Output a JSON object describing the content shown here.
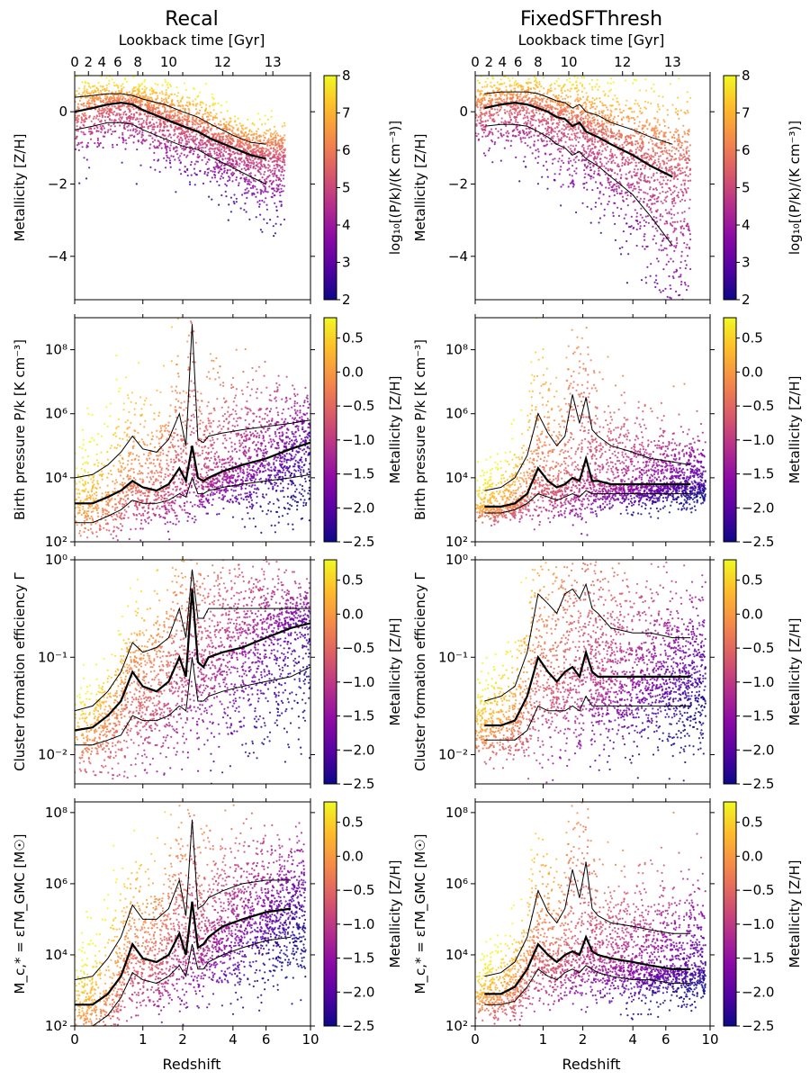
{
  "figure": {
    "columns": [
      {
        "title": "Recal",
        "lookback_label": "Lookback time [Gyr]"
      },
      {
        "title": "FixedSFThresh",
        "lookback_label": "Lookback time [Gyr]"
      }
    ],
    "lookback_ticks": [
      {
        "label": "0",
        "z": 0.0
      },
      {
        "label": "2",
        "z": 0.15
      },
      {
        "label": "4",
        "z": 0.32
      },
      {
        "label": "6",
        "z": 0.55
      },
      {
        "label": "8",
        "z": 0.9
      },
      {
        "label": "10",
        "z": 1.6
      },
      {
        "label": "12",
        "z": 3.5
      },
      {
        "label": "13",
        "z": 6.5
      }
    ],
    "x_label": "Redshift",
    "x_ticks": [
      "0",
      "1",
      "2",
      "4",
      "6",
      "10"
    ],
    "colors": {
      "cmap": [
        "#0d0887",
        "#5302a3",
        "#8b0aa5",
        "#b83289",
        "#db5c68",
        "#f48849",
        "#febc2a",
        "#f0f921"
      ],
      "median_line": "#000000",
      "percentile_line": "#000000"
    }
  },
  "chart_data": [
    {
      "type": "scatter",
      "panel": "recal-metallicity",
      "ylabel": "Metallicity [Z/H]",
      "yscale": "linear",
      "ylim": [
        -5.2,
        1.0
      ],
      "y_ticks": [
        "0",
        "−2",
        "−4"
      ],
      "colorbar_label": "log10[(P/k)/(K cm^-3)]",
      "colorbar_range": [
        2,
        8
      ],
      "colorbar_ticks": [
        "2",
        "3",
        "4",
        "5",
        "6",
        "7",
        "8"
      ],
      "x": [
        0.0,
        0.2,
        0.4,
        0.6,
        0.8,
        1.0,
        1.5,
        2.0,
        2.5,
        3.0,
        4.0,
        5.0,
        6.0
      ],
      "median": [
        0.0,
        0.1,
        0.2,
        0.25,
        0.2,
        0.05,
        -0.2,
        -0.4,
        -0.55,
        -0.75,
        -1.0,
        -1.2,
        -1.3
      ],
      "p16": [
        -0.5,
        -0.4,
        -0.3,
        -0.3,
        -0.35,
        -0.5,
        -0.75,
        -0.95,
        -1.05,
        -1.25,
        -1.55,
        -1.8,
        -2.0
      ],
      "p84": [
        0.4,
        0.45,
        0.5,
        0.5,
        0.45,
        0.35,
        0.2,
        0.0,
        -0.15,
        -0.35,
        -0.65,
        -0.85,
        -0.9
      ]
    },
    {
      "type": "scatter",
      "panel": "fixed-metallicity",
      "ylabel": "Metallicity [Z/H]",
      "yscale": "linear",
      "ylim": [
        -5.2,
        1.0
      ],
      "y_ticks": [
        "0",
        "−2",
        "−4"
      ],
      "colorbar_label": "log10[(P/k)/(K cm^-3)]",
      "colorbar_range": [
        2,
        8
      ],
      "colorbar_ticks": [
        "2",
        "3",
        "4",
        "5",
        "6",
        "7",
        "8"
      ],
      "x": [
        0.1,
        0.3,
        0.5,
        0.7,
        0.9,
        1.1,
        1.3,
        1.5,
        1.7,
        1.9,
        2.1,
        2.5,
        3.0,
        4.0,
        5.0,
        6.5
      ],
      "median": [
        0.1,
        0.2,
        0.25,
        0.2,
        0.1,
        0.0,
        -0.15,
        -0.2,
        -0.4,
        -0.3,
        -0.55,
        -0.7,
        -0.9,
        -1.2,
        -1.5,
        -1.8
      ],
      "p16": [
        -0.4,
        -0.35,
        -0.35,
        -0.4,
        -0.55,
        -0.7,
        -0.9,
        -1.0,
        -1.2,
        -1.1,
        -1.3,
        -1.5,
        -1.8,
        -2.3,
        -2.9,
        -3.7
      ],
      "p84": [
        0.5,
        0.55,
        0.55,
        0.55,
        0.5,
        0.4,
        0.3,
        0.25,
        0.1,
        0.2,
        0.0,
        -0.1,
        -0.3,
        -0.5,
        -0.7,
        -0.9
      ]
    },
    {
      "type": "scatter",
      "panel": "recal-pressure",
      "ylabel": "Birth pressure P/k [K cm^-3]",
      "yscale": "log",
      "ylim": [
        2,
        9
      ],
      "y_ticks": [
        "10^2",
        "10^4",
        "10^6",
        "10^8"
      ],
      "colorbar_label": "Metallicity [Z/H]",
      "colorbar_range": [
        -2.5,
        0.8
      ],
      "colorbar_ticks": [
        "0.5",
        "0.0",
        "−0.5",
        "−1.0",
        "−1.5",
        "−2.0",
        "−2.5"
      ],
      "x": [
        0.0,
        0.2,
        0.4,
        0.6,
        0.8,
        1.0,
        1.3,
        1.6,
        1.9,
        2.1,
        2.3,
        2.5,
        2.7,
        2.9,
        3.5,
        4.5,
        6.0,
        8.0,
        10.0
      ],
      "median": [
        3.2,
        3.2,
        3.4,
        3.6,
        3.9,
        3.7,
        3.6,
        3.8,
        4.3,
        3.9,
        5.0,
        4.0,
        3.9,
        4.0,
        4.2,
        4.4,
        4.6,
        4.9,
        5.1
      ],
      "p16": [
        2.6,
        2.6,
        2.8,
        3.0,
        3.3,
        3.2,
        3.2,
        3.3,
        3.5,
        3.4,
        4.0,
        3.5,
        3.5,
        3.6,
        3.7,
        3.8,
        3.9,
        4.0,
        4.1
      ],
      "p84": [
        4.0,
        4.1,
        4.4,
        4.8,
        5.3,
        4.9,
        4.8,
        5.2,
        6.0,
        5.0,
        8.8,
        5.2,
        5.1,
        5.3,
        5.4,
        5.5,
        5.6,
        5.7,
        5.8
      ]
    },
    {
      "type": "scatter",
      "panel": "fixed-pressure",
      "ylabel": "Birth pressure P/k [K cm^-3]",
      "yscale": "log",
      "ylim": [
        2,
        9
      ],
      "y_ticks": [
        "10^2",
        "10^4",
        "10^6",
        "10^8"
      ],
      "colorbar_label": "Metallicity [Z/H]",
      "colorbar_range": [
        -2.5,
        0.8
      ],
      "colorbar_ticks": [
        "0.5",
        "0.0",
        "−0.5",
        "−1.0",
        "−1.5",
        "−2.0",
        "−2.5"
      ],
      "x": [
        0.1,
        0.3,
        0.5,
        0.7,
        0.9,
        1.1,
        1.3,
        1.5,
        1.7,
        1.9,
        2.1,
        2.3,
        2.5,
        3.0,
        4.0,
        5.0,
        6.5,
        8.0
      ],
      "median": [
        3.1,
        3.1,
        3.2,
        3.5,
        4.3,
        3.9,
        3.7,
        3.8,
        4.0,
        3.9,
        4.6,
        3.9,
        3.9,
        3.8,
        3.8,
        3.8,
        3.8,
        3.8
      ],
      "p16": [
        2.9,
        2.9,
        3.0,
        3.2,
        3.5,
        3.4,
        3.3,
        3.4,
        3.5,
        3.4,
        3.6,
        3.5,
        3.5,
        3.5,
        3.5,
        3.5,
        3.5,
        3.5
      ],
      "p84": [
        3.6,
        3.7,
        4.0,
        4.7,
        6.0,
        5.4,
        5.0,
        5.3,
        6.6,
        5.7,
        6.5,
        5.5,
        5.3,
        5.0,
        4.8,
        4.6,
        4.5,
        4.4
      ]
    },
    {
      "type": "scatter",
      "panel": "recal-cfe",
      "ylabel": "Cluster formation efficiency Γ",
      "yscale": "log",
      "ylim": [
        -2.3,
        0
      ],
      "y_ticks": [
        "10^0",
        "10^-1",
        "10^-2"
      ],
      "colorbar_label": "Metallicity [Z/H]",
      "colorbar_range": [
        -2.5,
        0.8
      ],
      "colorbar_ticks": [
        "0.5",
        "0.0",
        "−0.5",
        "−1.0",
        "−1.5",
        "−2.0",
        "−2.5"
      ],
      "x": [
        0.0,
        0.2,
        0.4,
        0.6,
        0.8,
        1.0,
        1.3,
        1.6,
        1.9,
        2.1,
        2.3,
        2.5,
        2.7,
        2.9,
        3.5,
        4.5,
        6.0,
        8.0,
        10.0
      ],
      "median": [
        -1.75,
        -1.72,
        -1.6,
        -1.45,
        -1.15,
        -1.3,
        -1.35,
        -1.25,
        -1.0,
        -1.2,
        -0.3,
        -1.05,
        -1.1,
        -1.0,
        -0.95,
        -0.9,
        -0.8,
        -0.7,
        -0.65
      ],
      "p16": [
        -1.9,
        -1.9,
        -1.85,
        -1.8,
        -1.6,
        -1.65,
        -1.65,
        -1.6,
        -1.5,
        -1.55,
        -1.0,
        -1.45,
        -1.45,
        -1.4,
        -1.35,
        -1.3,
        -1.25,
        -1.2,
        -1.1
      ],
      "p84": [
        -1.55,
        -1.5,
        -1.35,
        -1.15,
        -0.85,
        -0.95,
        -0.9,
        -0.8,
        -0.5,
        -0.8,
        -0.1,
        -0.6,
        -0.6,
        -0.5,
        -0.5,
        -0.5,
        -0.5,
        -0.5,
        -0.5
      ]
    },
    {
      "type": "scatter",
      "panel": "fixed-cfe",
      "ylabel": "Cluster formation efficiency Γ",
      "yscale": "log",
      "ylim": [
        -2.3,
        0
      ],
      "y_ticks": [
        "10^0",
        "10^-1",
        "10^-2"
      ],
      "colorbar_label": "Metallicity [Z/H]",
      "colorbar_range": [
        -2.5,
        0.8
      ],
      "colorbar_ticks": [
        "0.5",
        "0.0",
        "−0.5",
        "−1.0",
        "−1.5",
        "−2.0",
        "−2.5"
      ],
      "x": [
        0.1,
        0.3,
        0.5,
        0.7,
        0.9,
        1.1,
        1.3,
        1.5,
        1.7,
        1.9,
        2.1,
        2.3,
        2.5,
        3.0,
        4.0,
        5.0,
        6.5,
        8.0
      ],
      "median": [
        -1.7,
        -1.7,
        -1.65,
        -1.4,
        -1.0,
        -1.15,
        -1.25,
        -1.15,
        -1.1,
        -1.2,
        -0.95,
        -1.15,
        -1.2,
        -1.2,
        -1.2,
        -1.2,
        -1.2,
        -1.2
      ],
      "p16": [
        -1.85,
        -1.85,
        -1.85,
        -1.75,
        -1.5,
        -1.55,
        -1.55,
        -1.55,
        -1.5,
        -1.55,
        -1.4,
        -1.5,
        -1.5,
        -1.5,
        -1.5,
        -1.5,
        -1.5,
        -1.5
      ],
      "p84": [
        -1.45,
        -1.4,
        -1.3,
        -0.95,
        -0.35,
        -0.45,
        -0.55,
        -0.35,
        -0.3,
        -0.4,
        -0.25,
        -0.5,
        -0.55,
        -0.7,
        -0.75,
        -0.75,
        -0.8,
        -0.8
      ]
    },
    {
      "type": "scatter",
      "panel": "recal-mass",
      "ylabel": "M_c,* = εΓM_GMC [M☉]",
      "yscale": "log",
      "ylim": [
        2,
        8.3
      ],
      "y_ticks": [
        "10^2",
        "10^4",
        "10^6",
        "10^8"
      ],
      "colorbar_label": "Metallicity [Z/H]",
      "colorbar_range": [
        -2.5,
        0.8
      ],
      "colorbar_ticks": [
        "0.5",
        "0.0",
        "−0.5",
        "−1.0",
        "−1.5",
        "−2.0",
        "−2.5"
      ],
      "x": [
        0.0,
        0.2,
        0.4,
        0.6,
        0.8,
        1.0,
        1.3,
        1.6,
        1.9,
        2.1,
        2.3,
        2.5,
        2.7,
        2.9,
        3.5,
        4.5,
        6.0,
        8.0
      ],
      "median": [
        2.6,
        2.6,
        2.9,
        3.4,
        4.3,
        3.9,
        3.8,
        4.0,
        4.6,
        4.0,
        5.5,
        4.2,
        4.3,
        4.5,
        4.8,
        5.0,
        5.2,
        5.3
      ],
      "p16": [
        2.0,
        2.0,
        2.3,
        2.8,
        3.5,
        3.3,
        3.2,
        3.4,
        3.7,
        3.4,
        4.3,
        3.6,
        3.6,
        3.8,
        4.0,
        4.2,
        4.4,
        4.5
      ],
      "p84": [
        3.3,
        3.4,
        3.9,
        4.5,
        5.4,
        5.0,
        5.0,
        5.3,
        6.1,
        5.1,
        7.8,
        5.3,
        5.4,
        5.6,
        5.8,
        6.0,
        6.1,
        6.1
      ]
    },
    {
      "type": "scatter",
      "panel": "fixed-mass",
      "ylabel": "M_c,* = εΓM_GMC [M☉]",
      "yscale": "log",
      "ylim": [
        2,
        8.3
      ],
      "y_ticks": [
        "10^2",
        "10^4",
        "10^6",
        "10^8"
      ],
      "colorbar_label": "Metallicity [Z/H]",
      "colorbar_range": [
        -2.5,
        0.8
      ],
      "colorbar_ticks": [
        "0.5",
        "0.0",
        "−0.5",
        "−1.0",
        "−1.5",
        "−2.0",
        "−2.5"
      ],
      "x": [
        0.1,
        0.3,
        0.5,
        0.7,
        0.9,
        1.1,
        1.3,
        1.5,
        1.7,
        1.9,
        2.1,
        2.3,
        2.5,
        3.0,
        4.0,
        5.0,
        6.5,
        8.0
      ],
      "median": [
        2.9,
        2.9,
        3.1,
        3.6,
        4.3,
        4.0,
        3.8,
        4.0,
        4.1,
        4.0,
        4.5,
        4.1,
        4.0,
        3.9,
        3.8,
        3.7,
        3.6,
        3.6
      ],
      "p16": [
        2.6,
        2.6,
        2.7,
        3.1,
        3.6,
        3.4,
        3.3,
        3.5,
        3.6,
        3.5,
        3.7,
        3.6,
        3.5,
        3.4,
        3.3,
        3.3,
        3.2,
        3.2
      ],
      "p84": [
        3.4,
        3.5,
        3.8,
        4.5,
        5.8,
        5.2,
        4.9,
        5.3,
        6.4,
        5.6,
        6.6,
        5.3,
        5.1,
        4.9,
        4.8,
        4.7,
        4.6,
        4.6
      ]
    }
  ]
}
